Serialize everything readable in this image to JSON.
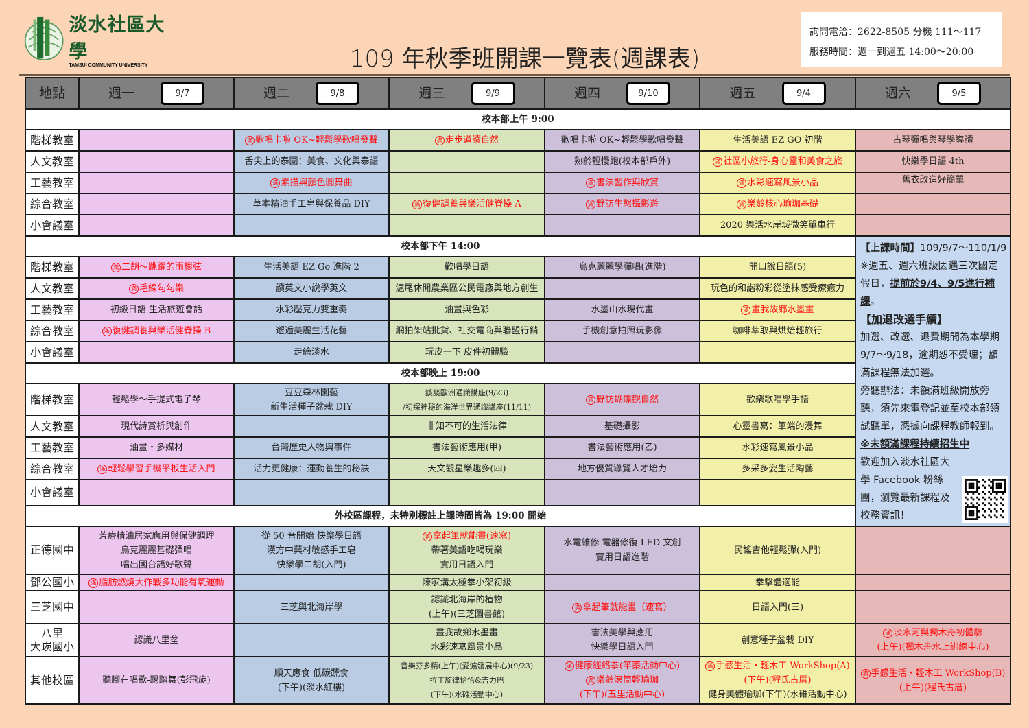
{
  "logo": {
    "name_zh": "淡水社區大學",
    "name_en": "TAMSUI COMMUNITY UNIVERSITY"
  },
  "title": "109 年秋季班開課一覽表(週課表)",
  "info": {
    "phone": "詢問電洽：2622-8505 分機 111～117",
    "hours": "服務時間：週一到週五 14:00～20:00"
  },
  "colors": {
    "background": "#fbd5b5",
    "header": "#808080",
    "mon": "#ecc6ee",
    "tue": "#b9cce4",
    "wed": "#d8e4bc",
    "thu": "#ccc0da",
    "fri": "#f2f0a8",
    "sat": "#e6b9b8",
    "notes": "#c6d9f1",
    "full_mark": "#ff1010"
  },
  "full_mark_char": "滿",
  "header": {
    "location": "地點",
    "days": [
      {
        "day": "週一",
        "date": "9/7"
      },
      {
        "day": "週二",
        "date": "9/8"
      },
      {
        "day": "週三",
        "date": "9/9"
      },
      {
        "day": "週四",
        "date": "9/10"
      },
      {
        "day": "週五",
        "date": "9/4"
      },
      {
        "day": "週六",
        "date": "9/5"
      }
    ]
  },
  "sections": [
    {
      "title": "校本部上午 9:00",
      "rows": [
        {
          "room": "階梯教室",
          "cells": [
            [],
            [
              {
                "text": "歡唱卡啦 OK~輕鬆學歌唱發聲",
                "mark": true
              }
            ],
            [
              {
                "text": "走步道讀自然",
                "mark": true
              }
            ],
            [
              {
                "text": "歡唱卡啦 OK~輕鬆學歌唱發聲"
              }
            ],
            [
              {
                "text": "生活美語 EZ GO 初階"
              }
            ],
            [
              {
                "text": "古琴彈唱與琴學導讀"
              }
            ]
          ]
        },
        {
          "room": "人文教室",
          "cells": [
            [],
            [
              {
                "text": "舌尖上的泰國：美食、文化與泰語"
              }
            ],
            [],
            [
              {
                "text": "熟齡輕慢跑(校本部戶外)"
              }
            ],
            [
              {
                "text": "社區小旅行-身心靈和美食之旅",
                "mark": true
              }
            ],
            [
              {
                "text": "快樂學日語 4th"
              }
            ]
          ]
        },
        {
          "room": "工藝教室",
          "cells": [
            [],
            [
              {
                "text": "素描與顏色圓舞曲",
                "mark": true
              }
            ],
            [],
            [
              {
                "text": "書法習作與欣賞",
                "mark": true
              }
            ],
            [
              {
                "text": "水彩速寫風景小品",
                "mark": true
              }
            ],
            [
              {
                "text": "舊衣改造好簡單"
              }
            ]
          ]
        },
        {
          "room": "綜合教室",
          "cells": [
            [],
            [
              {
                "text": "草本精油手工皂與保養品 DIY"
              }
            ],
            [
              {
                "text": "復健調養與樂活健脊操 A",
                "mark": true
              }
            ],
            [
              {
                "text": "野訪生態攝影遊",
                "mark": true
              }
            ],
            [
              {
                "text": "樂齡核心瑜珈基礎",
                "mark": true
              }
            ],
            []
          ]
        },
        {
          "room": "小會議室",
          "cells": [
            [],
            [],
            [],
            [],
            [
              {
                "text": "2020 樂活水岸城微笑單車行"
              }
            ],
            []
          ]
        }
      ]
    },
    {
      "title": "校本部下午 14:00",
      "rows": [
        {
          "room": "階梯教室",
          "cells": [
            [
              {
                "text": "二胡～跳躍的雨根弦",
                "mark": true
              }
            ],
            [
              {
                "text": "生活美語 EZ Go 進階 2"
              }
            ],
            [
              {
                "text": "歡唱學日語"
              }
            ],
            [
              {
                "text": "烏克麗麗學彈唱(進階)"
              }
            ],
            [
              {
                "text": "開口說日語(5)"
              }
            ]
          ]
        },
        {
          "room": "人文教室",
          "cells": [
            [
              {
                "text": "毛線勾勾樂",
                "mark": true
              }
            ],
            [
              {
                "text": "讀英文小說學英文"
              }
            ],
            [
              {
                "text": "滬尾休閒農業區公民電廠與地方創生"
              }
            ],
            [],
            [
              {
                "text": "玩色的和諧粉彩從塗抹感受療癒力"
              }
            ]
          ]
        },
        {
          "room": "工藝教室",
          "cells": [
            [
              {
                "text": "初級日語 生活旅遊會話"
              }
            ],
            [
              {
                "text": "水彩壓克力雙重奏"
              }
            ],
            [
              {
                "text": "油畫與色彩"
              }
            ],
            [
              {
                "text": "水墨山水現代畫"
              }
            ],
            [
              {
                "text": "畫我故鄉水墨畫",
                "mark": true
              }
            ]
          ]
        },
        {
          "room": "綜合教室",
          "cells": [
            [
              {
                "text": "復健調養與樂活健脊操 B",
                "mark": true
              }
            ],
            [
              {
                "text": "邂逅美麗生活花藝"
              }
            ],
            [
              {
                "text": "網拍架站批貨、社交電商與聯盟行銷"
              }
            ],
            [
              {
                "text": "手機創意拍照玩影像"
              }
            ],
            [
              {
                "text": "咖啡萃取與烘焙輕旅行"
              }
            ]
          ]
        },
        {
          "room": "小會議室",
          "cells": [
            [],
            [
              {
                "text": "走繪淡水"
              }
            ],
            [
              {
                "text": "玩皮一下 皮件初體驗"
              }
            ],
            [],
            []
          ]
        }
      ]
    },
    {
      "title": "校本部晚上 19:00",
      "rows": [
        {
          "room": "階梯教室",
          "cells": [
            [
              {
                "text": "輕鬆學～手提式電子琴"
              }
            ],
            [
              {
                "text": "豆豆森林園藝"
              },
              {
                "text": "新生活種子盆栽 DIY"
              }
            ],
            [
              {
                "text": "談談歐洲通識講座(9/23)",
                "small": true
              },
              {
                "text": "/初探神秘的海洋世界通識講座(11/11)",
                "small": true
              }
            ],
            [
              {
                "text": "野訪蝴蝶觀自然",
                "mark": true
              }
            ],
            [
              {
                "text": "歡樂歌唱學手語"
              }
            ]
          ]
        },
        {
          "room": "人文教室",
          "cells": [
            [
              {
                "text": "現代詩賞析與創作"
              }
            ],
            [],
            [
              {
                "text": "非知不可的生活法律"
              }
            ],
            [
              {
                "text": "基礎攝影"
              }
            ],
            [
              {
                "text": "心靈書寫：筆端的漫舞"
              }
            ]
          ]
        },
        {
          "room": "工藝教室",
          "cells": [
            [
              {
                "text": "油畫・多媒材"
              }
            ],
            [
              {
                "text": "台灣歷史人物與事件"
              }
            ],
            [
              {
                "text": "書法藝術應用(甲)"
              }
            ],
            [
              {
                "text": "書法藝術應用(乙)"
              }
            ],
            [
              {
                "text": "水彩速寫風景小品"
              }
            ]
          ]
        },
        {
          "room": "綜合教室",
          "cells": [
            [
              {
                "text": "輕鬆學習手機平板生活入門",
                "mark": true
              }
            ],
            [
              {
                "text": "活力更健康：運動養生的秘訣"
              }
            ],
            [
              {
                "text": "天文觀星樂趣多(四)"
              }
            ],
            [
              {
                "text": "地方優質導覽人才培力"
              }
            ],
            [
              {
                "text": "多采多姿生活陶藝"
              }
            ]
          ]
        },
        {
          "room": "小會議室",
          "cells": [
            [],
            [],
            [],
            [],
            []
          ]
        }
      ]
    },
    {
      "title": "外校區課程，未特別標註上課時間皆為 19:00 開始",
      "rows": [
        {
          "room": "正德國中",
          "cells": [
            [
              {
                "text": "芳療精油居家應用與保健調理"
              },
              {
                "text": "烏克麗麗基礎彈唱"
              },
              {
                "text": "唱出國台語好歌聲"
              }
            ],
            [
              {
                "text": "從 50 音開始 快樂學日語"
              },
              {
                "text": "漢方中藥材敏感手工皂"
              },
              {
                "text": "快樂學二胡(入門)"
              }
            ],
            [
              {
                "text": "拿起筆就能畫(速寫)",
                "mark": true
              },
              {
                "text": "帶著美語吃喝玩樂"
              },
              {
                "text": "實用日語入門"
              }
            ],
            [
              {
                "text": "水電維修 電器修復 LED 文創"
              },
              {
                "text": "實用日語進階"
              }
            ],
            [
              {
                "text": "民謠吉他輕鬆彈(入門)"
              }
            ],
            []
          ]
        },
        {
          "room": "鄧公國小",
          "cells": [
            [
              {
                "text": "脂肪燃燒大作戰多功能有氧運動",
                "mark": true
              }
            ],
            [],
            [
              {
                "text": "陳家溝太極拳小架初級"
              }
            ],
            [],
            [
              {
                "text": "拳擊體適能"
              }
            ],
            []
          ]
        },
        {
          "room": "三芝國中",
          "cells": [
            [],
            [
              {
                "text": "三芝與北海岸學"
              }
            ],
            [
              {
                "text": "認識北海岸的植物"
              },
              {
                "text": "(上午)(三芝圖書館)"
              }
            ],
            [
              {
                "text": "拿起筆就能畫（速寫）",
                "mark": true
              }
            ],
            [
              {
                "text": "日語入門(三)"
              }
            ],
            []
          ]
        },
        {
          "room": "八里\n大崁國小",
          "cells": [
            [
              {
                "text": "認識八里坌"
              }
            ],
            [],
            [
              {
                "text": "畫我故鄉水墨畫"
              },
              {
                "text": "水彩速寫風景小品"
              }
            ],
            [
              {
                "text": "書法美學與應用"
              },
              {
                "text": "快樂學日語入門"
              }
            ],
            [
              {
                "text": "創意種子盆栽 DIY"
              }
            ],
            [
              {
                "text": "淡水河與獨木舟初體驗",
                "mark": true
              },
              {
                "text": "(上午)(獨木舟水上訓練中心)",
                "red": true
              }
            ]
          ]
        },
        {
          "room": "其他校區",
          "cells": [
            [
              {
                "text": "聽腳在唱歌-踢踏舞(彭飛旋)"
              }
            ],
            [
              {
                "text": "順天應食 低碳蔬食"
              },
              {
                "text": "(下午)(淡水紅樓)"
              }
            ],
            [
              {
                "text": "音樂芬多精(上午)(愛滬發展中心)(9/23)",
                "small": true
              },
              {
                "text": "拉丁旋律恰恰&吉力巴",
                "small": true
              },
              {
                "text": "(下午)(水碓活動中心)",
                "small": true
              }
            ],
            [
              {
                "text": "健康經絡拳(竿蓁活動中心)",
                "mark": true
              },
              {
                "text": "樂齡滾筒輕瑜珈",
                "mark": true
              },
              {
                "text": "(下午)(五里活動中心)",
                "red": true
              }
            ],
            [
              {
                "text": "手感生活・輕木工 WorkShop(A)",
                "mark": true
              },
              {
                "text": "(下午)(程氏古厝)",
                "red": true
              },
              {
                "text": "健身美體瑜珈(下午)(水碓活動中心)"
              }
            ],
            [
              {
                "text": "手感生活・輕木工 WorkShop(B)",
                "mark": true
              },
              {
                "text": "(上午)(程氏古厝)",
                "red": true
              }
            ]
          ]
        }
      ]
    }
  ],
  "notes": {
    "class_period_label": "【上課時間】",
    "class_period": "109/9/7～110/1/9",
    "holiday_note": "※週五、週六班級因遇三次國定假日，",
    "holiday_note_emph": "提前於9/4、9/5進行補課",
    "holiday_note_end": "。",
    "addrop_label": "【加退改選手續】",
    "addrop_text": "加選、改選、退費期間為本學期9/7～9/18，逾期恕不受理；額滿課程無法加選。",
    "audit_text": "旁聽辦法：未額滿班級開放旁聽，須先來電登記並至校本部領試聽單，憑據向課程教師報到。",
    "enrolling": "※未額滿課程持續招生中",
    "facebook": "歡迎加入淡水社區大學 Facebook 粉絲團，瀏覽最新課程及校務資訊！"
  }
}
